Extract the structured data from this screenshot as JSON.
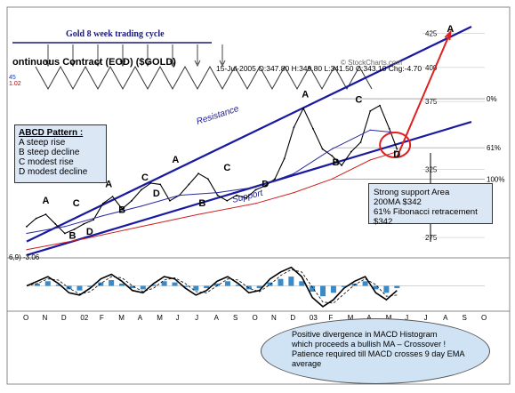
{
  "header": {
    "cycle_title": "Gold 8 week trading cycle",
    "contract": "ontinuous Contract (EOD) ($GOLD)",
    "quote": "15-Jul-2005 O:347.80 H:349.80 L:341.50 C:343.10 Chg:-4.70",
    "credit": "© StockCharts.com",
    "ind_line1": "45",
    "ind_line2": "1.02",
    "macd_label": "6,9) -3.06"
  },
  "abcd_box": {
    "title": "ABCD Pattern :",
    "lines": [
      "A steep rise",
      "B steep decline",
      "C modest rise",
      "D modest decline"
    ]
  },
  "support_box": {
    "lines": [
      "Strong support Area",
      "200MA $342",
      "61% Fibonacci retracement $342"
    ]
  },
  "macd_note": {
    "lines": [
      "Positive divergence in MACD Histogram",
      "which proceeds a bullish MA – Crossover !",
      "Patience required till MACD crosses 9 day EMA average"
    ]
  },
  "chart_data": {
    "type": "line",
    "title": "",
    "x_axis_labels": [
      "O",
      "N",
      "D",
      "02",
      "F",
      "M",
      "A",
      "M",
      "J",
      "J",
      "A",
      "S",
      "O",
      "N",
      "D",
      "03",
      "F",
      "M",
      "A",
      "M",
      "J",
      "J",
      "A",
      "S",
      "O"
    ],
    "price_axis": {
      "ticks": [
        425,
        400,
        375,
        325,
        275
      ],
      "range": [
        260,
        430
      ]
    },
    "fibonacci_levels": [
      {
        "label": "0%",
        "value": 377
      },
      {
        "label": "61%",
        "value": 341
      },
      {
        "label": "100%",
        "value": 318
      }
    ],
    "trendline_labels": [
      "Resistance",
      "Support"
    ],
    "pattern_labels": [
      {
        "text": "A",
        "x": 1,
        "y": 300
      },
      {
        "text": "B",
        "x": 2.4,
        "y": 274
      },
      {
        "text": "C",
        "x": 2.6,
        "y": 298
      },
      {
        "text": "D",
        "x": 3.3,
        "y": 277
      },
      {
        "text": "A",
        "x": 4.3,
        "y": 312
      },
      {
        "text": "B",
        "x": 5.0,
        "y": 293
      },
      {
        "text": "C",
        "x": 6.2,
        "y": 317
      },
      {
        "text": "D",
        "x": 6.8,
        "y": 305
      },
      {
        "text": "A",
        "x": 7.8,
        "y": 330
      },
      {
        "text": "B",
        "x": 9.2,
        "y": 298
      },
      {
        "text": "C",
        "x": 10.5,
        "y": 324
      },
      {
        "text": "D",
        "x": 12.5,
        "y": 312
      },
      {
        "text": "A",
        "x": 14.6,
        "y": 378
      },
      {
        "text": "B",
        "x": 16.2,
        "y": 328
      },
      {
        "text": "C",
        "x": 17.4,
        "y": 374
      },
      {
        "text": "D",
        "x": 19.4,
        "y": 334
      },
      {
        "text": "A",
        "x": 22.2,
        "y": 426
      }
    ],
    "series": [
      {
        "name": "",
        "color": "#000000",
        "x": [
          0,
          0.5,
          1,
          1.5,
          2,
          2.5,
          3,
          3.5,
          4,
          4.5,
          5,
          5.5,
          6,
          6.5,
          7,
          7.5,
          8,
          8.5,
          9,
          9.5,
          10,
          10.5,
          11,
          11.5,
          12,
          12.5,
          13,
          13.5,
          14,
          14.5,
          15,
          15.5,
          16,
          16.5,
          17,
          17.5,
          18,
          18.5,
          19,
          19.4
        ],
        "y": [
          283,
          289,
          292,
          285,
          278,
          281,
          285,
          288,
          300,
          305,
          296,
          302,
          310,
          315,
          314,
          302,
          306,
          314,
          322,
          318,
          306,
          302,
          306,
          304,
          310,
          313,
          318,
          333,
          356,
          370,
          355,
          340,
          335,
          328,
          338,
          345,
          368,
          372,
          355,
          340
        ]
      },
      {
        "name": "",
        "color": "#2a2aa0",
        "x": [
          0,
          2,
          4,
          6,
          8,
          10,
          12,
          14,
          16,
          18,
          19.4
        ],
        "y": [
          278,
          283,
          291,
          298,
          306,
          308,
          312,
          322,
          340,
          354,
          352
        ]
      },
      {
        "name": "",
        "color": "#d02020",
        "x": [
          0,
          3,
          6,
          9,
          12,
          14,
          16,
          18,
          19.4
        ],
        "y": [
          266,
          274,
          283,
          292,
          300,
          308,
          318,
          332,
          338
        ]
      },
      {
        "name": "",
        "color": "#e02020",
        "x": [
          19.4,
          22.2
        ],
        "y": [
          334,
          426
        ]
      }
    ],
    "macd": {
      "zero_line": 0,
      "values": [
        0,
        2,
        4,
        1,
        -3,
        -4,
        -1,
        3,
        5,
        2,
        -2,
        -3,
        1,
        4,
        3,
        -1,
        -4,
        -2,
        2,
        4,
        1,
        -3,
        -2,
        3,
        6,
        8,
        4,
        -5,
        -9,
        -6,
        -1,
        2,
        4,
        -3,
        -6,
        -2
      ]
    }
  }
}
